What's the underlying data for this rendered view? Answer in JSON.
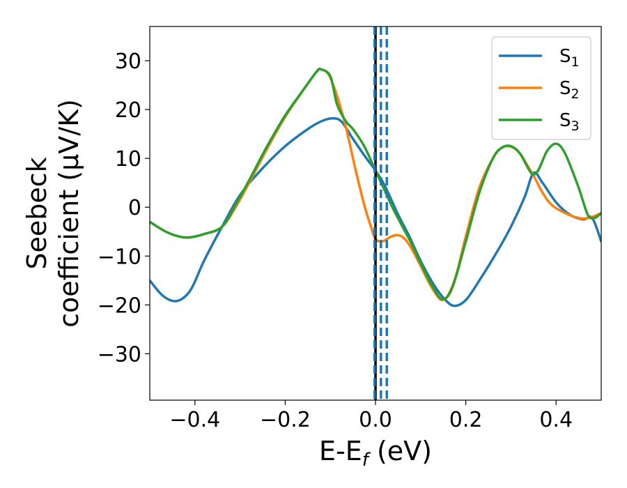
{
  "chart_data": {
    "type": "line",
    "xlabel": {
      "main": "E-E",
      "sub": "f",
      "unit": " (eV)"
    },
    "ylabel": {
      "line1": "Seebeck",
      "line2": "coefficient  (μV/K)"
    },
    "xlim": [
      -0.5,
      0.5
    ],
    "ylim": [
      -39.5,
      37
    ],
    "xticks": [
      {
        "value": -0.4,
        "label": "−0.4"
      },
      {
        "value": -0.2,
        "label": "−0.2"
      },
      {
        "value": 0.0,
        "label": "0.0"
      },
      {
        "value": 0.2,
        "label": "0.2"
      },
      {
        "value": 0.4,
        "label": "0.4"
      }
    ],
    "yticks": [
      {
        "value": 30,
        "label": "30"
      },
      {
        "value": 20,
        "label": "20"
      },
      {
        "value": 10,
        "label": "10"
      },
      {
        "value": 0,
        "label": "0"
      },
      {
        "value": -10,
        "label": "−10"
      },
      {
        "value": -20,
        "label": "−20"
      },
      {
        "value": -30,
        "label": "−30"
      }
    ],
    "grid": false,
    "legend_position": "top-right",
    "vlines": [
      {
        "x": 0.0,
        "color": "#000000",
        "style": "solid"
      },
      {
        "x": -0.002,
        "color": "#1f77b4",
        "style": "dashed"
      },
      {
        "x": 0.012,
        "color": "#1f77b4",
        "style": "dashed"
      },
      {
        "x": 0.025,
        "color": "#1f77b4",
        "style": "dashed"
      }
    ],
    "series": [
      {
        "name": "S",
        "sub": "1",
        "color": "#1f77b4",
        "points": [
          [
            -0.5,
            -15
          ],
          [
            -0.47,
            -18.2
          ],
          [
            -0.44,
            -19.2
          ],
          [
            -0.41,
            -17
          ],
          [
            -0.38,
            -11
          ],
          [
            -0.34,
            -4
          ],
          [
            -0.3,
            2.5
          ],
          [
            -0.25,
            8
          ],
          [
            -0.2,
            12.5
          ],
          [
            -0.15,
            16
          ],
          [
            -0.12,
            17.6
          ],
          [
            -0.095,
            18.2
          ],
          [
            -0.075,
            17.5
          ],
          [
            -0.05,
            14
          ],
          [
            -0.02,
            10
          ],
          [
            0.0,
            7.5
          ],
          [
            0.02,
            4.5
          ],
          [
            0.05,
            -1.5
          ],
          [
            0.075,
            -6
          ],
          [
            0.1,
            -11
          ],
          [
            0.13,
            -16
          ],
          [
            0.155,
            -19
          ],
          [
            0.175,
            -20.2
          ],
          [
            0.2,
            -19
          ],
          [
            0.23,
            -15
          ],
          [
            0.27,
            -9
          ],
          [
            0.3,
            -4
          ],
          [
            0.33,
            2
          ],
          [
            0.35,
            7
          ],
          [
            0.37,
            5
          ],
          [
            0.4,
            1
          ],
          [
            0.43,
            -1.5
          ],
          [
            0.46,
            -2.5
          ],
          [
            0.48,
            -2.2
          ],
          [
            0.5,
            -7
          ]
        ]
      },
      {
        "name": "S",
        "sub": "2",
        "color": "#ff7f0e",
        "points": [
          [
            -0.5,
            -3
          ],
          [
            -0.46,
            -5.2
          ],
          [
            -0.42,
            -6.2
          ],
          [
            -0.38,
            -5.5
          ],
          [
            -0.34,
            -4
          ],
          [
            -0.31,
            0
          ],
          [
            -0.28,
            5
          ],
          [
            -0.24,
            12
          ],
          [
            -0.2,
            18.5
          ],
          [
            -0.16,
            24
          ],
          [
            -0.13,
            27.8
          ],
          [
            -0.12,
            28.2
          ],
          [
            -0.1,
            26.5
          ],
          [
            -0.07,
            18
          ],
          [
            -0.045,
            8
          ],
          [
            -0.025,
            0.5
          ],
          [
            -0.01,
            -4
          ],
          [
            0.0,
            -6.5
          ],
          [
            0.015,
            -7
          ],
          [
            0.035,
            -6
          ],
          [
            0.05,
            -5.7
          ],
          [
            0.065,
            -6.5
          ],
          [
            0.08,
            -8.5
          ],
          [
            0.1,
            -12
          ],
          [
            0.125,
            -16.5
          ],
          [
            0.15,
            -19
          ],
          [
            0.175,
            -15
          ],
          [
            0.2,
            -6
          ],
          [
            0.23,
            4
          ],
          [
            0.26,
            10
          ],
          [
            0.28,
            12.2
          ],
          [
            0.3,
            12.4
          ],
          [
            0.32,
            11
          ],
          [
            0.34,
            8
          ],
          [
            0.35,
            6.5
          ],
          [
            0.37,
            3
          ],
          [
            0.39,
            0.5
          ],
          [
            0.42,
            -1.2
          ],
          [
            0.45,
            -2.2
          ],
          [
            0.465,
            -2.3
          ],
          [
            0.48,
            -2
          ],
          [
            0.5,
            -1.2
          ]
        ]
      },
      {
        "name": "S",
        "sub": "3",
        "color": "#2ca02c",
        "points": [
          [
            -0.5,
            -3
          ],
          [
            -0.46,
            -5.2
          ],
          [
            -0.42,
            -6.2
          ],
          [
            -0.38,
            -5.5
          ],
          [
            -0.34,
            -4
          ],
          [
            -0.31,
            0.5
          ],
          [
            -0.28,
            5.5
          ],
          [
            -0.24,
            12.5
          ],
          [
            -0.2,
            18.8
          ],
          [
            -0.16,
            24
          ],
          [
            -0.13,
            27.8
          ],
          [
            -0.12,
            28.2
          ],
          [
            -0.1,
            26.8
          ],
          [
            -0.085,
            21
          ],
          [
            -0.065,
            17.5
          ],
          [
            -0.05,
            16
          ],
          [
            -0.025,
            12.5
          ],
          [
            0.0,
            7.5
          ],
          [
            0.02,
            3.5
          ],
          [
            0.04,
            -0.5
          ],
          [
            0.06,
            -4
          ],
          [
            0.08,
            -7.5
          ],
          [
            0.1,
            -11.5
          ],
          [
            0.125,
            -16
          ],
          [
            0.148,
            -18.8
          ],
          [
            0.17,
            -16.5
          ],
          [
            0.2,
            -7
          ],
          [
            0.23,
            3
          ],
          [
            0.26,
            10
          ],
          [
            0.28,
            12.2
          ],
          [
            0.3,
            12.5
          ],
          [
            0.32,
            11
          ],
          [
            0.345,
            7
          ],
          [
            0.36,
            7.5
          ],
          [
            0.38,
            11.5
          ],
          [
            0.4,
            13
          ],
          [
            0.42,
            11
          ],
          [
            0.45,
            4
          ],
          [
            0.47,
            -1.5
          ],
          [
            0.485,
            -2.2
          ],
          [
            0.5,
            -1.2
          ]
        ]
      }
    ]
  }
}
